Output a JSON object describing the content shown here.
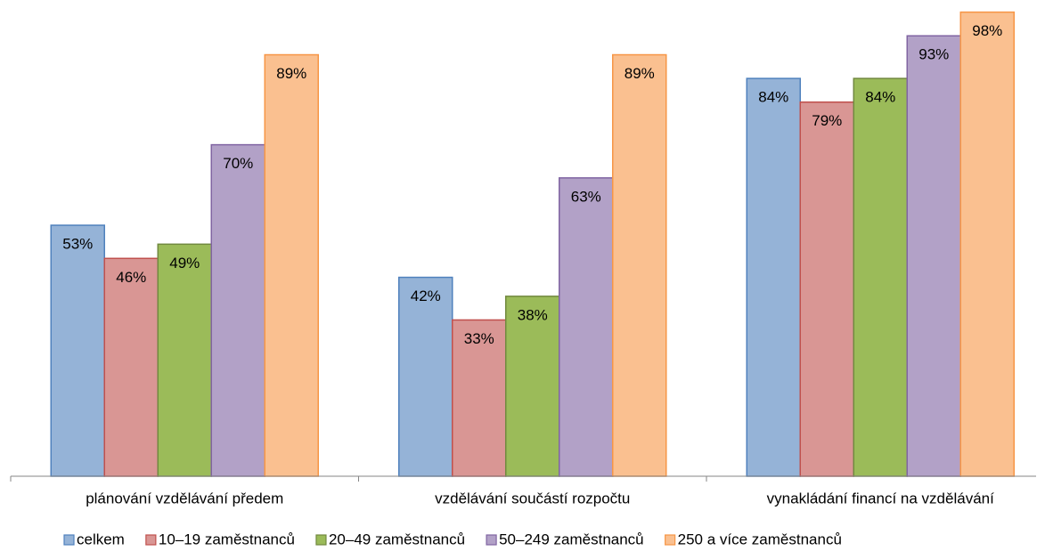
{
  "chart_data": {
    "type": "bar",
    "categories": [
      "plánování vzdělávání předem",
      "vzdělávání součástí rozpočtu",
      "vynakládání financí na vzdělávání"
    ],
    "ylim": [
      0,
      100
    ],
    "series": [
      {
        "name": "celkem",
        "color": "#95b3d7",
        "edge": "#4f81bd",
        "values": [
          53,
          42,
          84
        ],
        "value_labels": [
          "53%",
          "42%",
          "84%"
        ]
      },
      {
        "name": "10–19 zaměstnanců",
        "color": "#d99694",
        "edge": "#c0504d",
        "values": [
          46,
          33,
          79
        ],
        "value_labels": [
          "46%",
          "33%",
          "79%"
        ]
      },
      {
        "name": "20–49 zaměstnanců",
        "color": "#9bbb59",
        "edge": "#71893f",
        "values": [
          49,
          38,
          84
        ],
        "value_labels": [
          "49%",
          "38%",
          "84%"
        ]
      },
      {
        "name": "50–249 zaměstnanců",
        "color": "#b2a1c7",
        "edge": "#8064a2",
        "values": [
          70,
          63,
          93
        ],
        "value_labels": [
          "70%",
          "63%",
          "93%"
        ]
      },
      {
        "name": "250 a více zaměstnanců",
        "color": "#fac090",
        "edge": "#f79646",
        "values": [
          89,
          89,
          98
        ],
        "value_labels": [
          "89%",
          "89%",
          "98%"
        ]
      }
    ]
  }
}
